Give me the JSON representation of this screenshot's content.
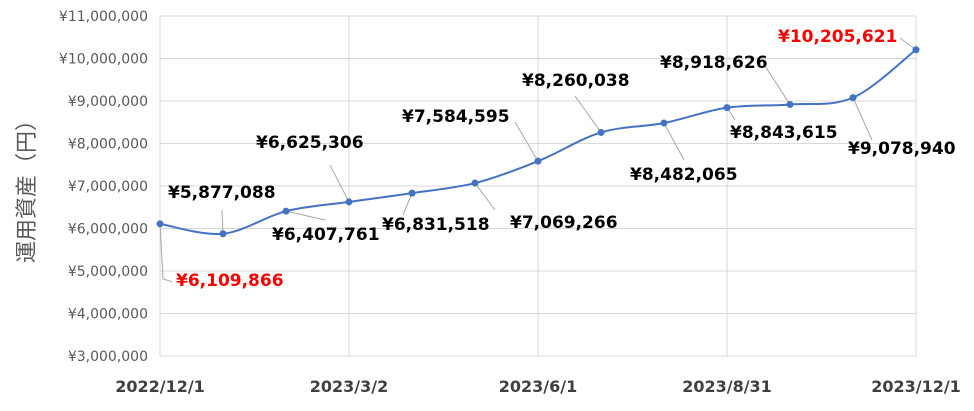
{
  "chart_data": {
    "type": "line",
    "title": "",
    "xlabel": "",
    "ylabel": "運用資産（円）",
    "ylim": [
      3000000,
      11000000
    ],
    "y_ticks": [
      "¥3,000,000",
      "¥4,000,000",
      "¥5,000,000",
      "¥6,000,000",
      "¥7,000,000",
      "¥8,000,000",
      "¥9,000,000",
      "¥10,000,000",
      "¥11,000,000"
    ],
    "x_ticks": [
      "2022/12/1",
      "2023/3/2",
      "2023/6/1",
      "2023/8/31",
      "2023/12/1"
    ],
    "grid": true,
    "series_color": "#4472C4",
    "highlight_color": "#FF0000",
    "series": [
      {
        "points": [
          {
            "x": "2022/12/1",
            "y": 6109866,
            "label": "¥6,109,866",
            "highlight": true
          },
          {
            "x": "2023/1/1",
            "y": 5877088,
            "label": "¥5,877,088",
            "highlight": false
          },
          {
            "x": "2023/2/1",
            "y": 6407761,
            "label": "¥6,407,761",
            "highlight": false
          },
          {
            "x": "2023/3/2",
            "y": 6625306,
            "label": "¥6,625,306",
            "highlight": false
          },
          {
            "x": "2023/4/1",
            "y": 6831518,
            "label": "¥6,831,518",
            "highlight": false
          },
          {
            "x": "2023/5/1",
            "y": 7069266,
            "label": "¥7,069,266",
            "highlight": false
          },
          {
            "x": "2023/6/1",
            "y": 7584595,
            "label": "¥7,584,595",
            "highlight": false
          },
          {
            "x": "2023/7/1",
            "y": 8260038,
            "label": "¥8,260,038",
            "highlight": false
          },
          {
            "x": "2023/8/1",
            "y": 8482065,
            "label": "¥8,482,065",
            "highlight": false
          },
          {
            "x": "2023/8/31",
            "y": 8843615,
            "label": "¥8,843,615",
            "highlight": false
          },
          {
            "x": "2023/10/1",
            "y": 8918626,
            "label": "¥8,918,626",
            "highlight": false
          },
          {
            "x": "2023/11/1",
            "y": 9078940,
            "label": "¥9,078,940",
            "highlight": false
          },
          {
            "x": "2023/12/1",
            "y": 10205621,
            "label": "¥10,205,621",
            "highlight": true
          }
        ]
      }
    ]
  }
}
